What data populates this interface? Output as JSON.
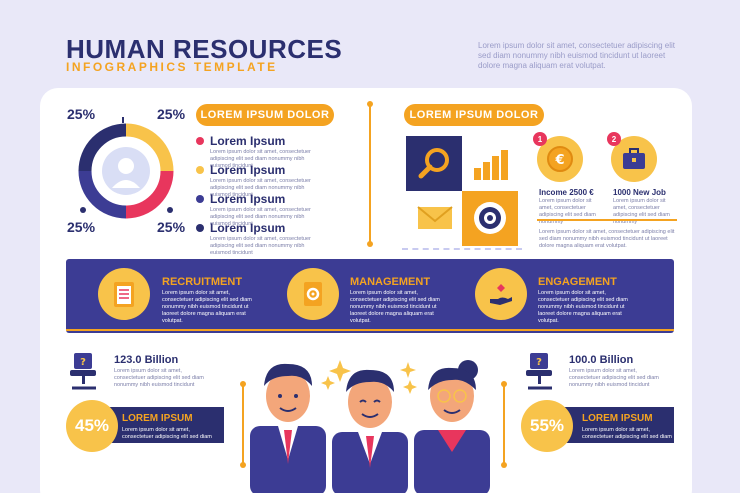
{
  "header": {
    "title": "HUMAN RESOURCES",
    "subtitle": "INFOGRAPHICS TEMPLATE",
    "text": "Lorem ipsum dolor sit amet, consectetuer adipiscing elit sed diam nonummy nibh euismod tincidunt ut laoreet dolore magna aliquam erat volutpat."
  },
  "donut": {
    "pct_tl": "25%",
    "pct_tr": "25%",
    "pct_bl": "25%",
    "pct_br": "25%",
    "segments": [
      25,
      25,
      25,
      25
    ],
    "colors": [
      "#f8c34a",
      "#e8365d",
      "#3c3c94",
      "#2b2f6f"
    ]
  },
  "left_section": {
    "pill": "LOREM IPSUM DOLOR",
    "items": [
      {
        "title": "Lorem Ipsum",
        "text": "Lorem ipsum dolor sit amet, consectetuer adipiscing elit sed diam nonummy nibh euismod tincidunt",
        "color": "#e8365d"
      },
      {
        "title": "Lorem Ipsum",
        "text": "Lorem ipsum dolor sit amet, consectetuer adipiscing elit sed diam nonummy nibh euismod tincidunt",
        "color": "#f8c34a"
      },
      {
        "title": "Lorem Ipsum",
        "text": "Lorem ipsum dolor sit amet, consectetuer adipiscing elit sed diam nonummy nibh euismod tincidunt",
        "color": "#3c3c94"
      },
      {
        "title": "Lorem Ipsum",
        "text": "Lorem ipsum dolor sit amet, consectetuer adipiscing elit sed diam nonummy nibh euismod tincidunt",
        "color": "#2b2f6f"
      }
    ]
  },
  "right_section": {
    "pill": "LOREM IPSUM DOLOR",
    "stat1": {
      "num": "1",
      "label": "Income 2500 €",
      "text": "Lorem ipsum dolor sit amet, consectetuer adipiscing elit sed diam nonummy"
    },
    "stat2": {
      "num": "2",
      "label": "1000 New Job",
      "text": "Lorem ipsum dolor sit amet, consectetuer adipiscing elit sed diam nonummy"
    },
    "footer_text": "Lorem ipsum dolor sit amet, consectetuer adipiscing elit sed diam nonummy nibh euismod tincidunt ut laoreet dolore magna aliquam erat volutpat."
  },
  "banner": {
    "items": [
      {
        "title": "RECRUITMENT",
        "text": "Lorem ipsum dolor sit amet, consectetuer adipiscing elit sed diam nonummy nibh euismod tincidunt ut laoreet dolore magna aliquam erat volutpat."
      },
      {
        "title": "MANAGEMENT",
        "text": "Lorem ipsum dolor sit amet, consectetuer adipiscing elit sed diam nonummy nibh euismod tincidunt ut laoreet dolore magna aliquam erat volutpat."
      },
      {
        "title": "ENGAGEMENT",
        "text": "Lorem ipsum dolor sit amet, consectetuer adipiscing elit sed diam nonummy nibh euismod tincidunt ut laoreet dolore magna aliquam erat volutpat."
      }
    ]
  },
  "bottom_left": {
    "value": "123.0 Billion",
    "text": "Lorem ipsum dolor sit amet, consectetuer adipiscing elit sed diam nonummy nibh euismod tincidunt",
    "pct": "45%",
    "ribbon_title": "LOREM IPSUM",
    "ribbon_text": "Lorem ipsum dolor sit amet, consectetuer adipiscing elit sed diam"
  },
  "bottom_right": {
    "value": "100.0 Billion",
    "text": "Lorem ipsum dolor sit amet, consectetuer adipiscing elit sed diam nonummy nibh euismod tincidunt",
    "pct": "55%",
    "ribbon_title": "LOREM IPSUM",
    "ribbon_text": "Lorem ipsum dolor sit amet, consectetuer adipiscing elit sed diam"
  }
}
